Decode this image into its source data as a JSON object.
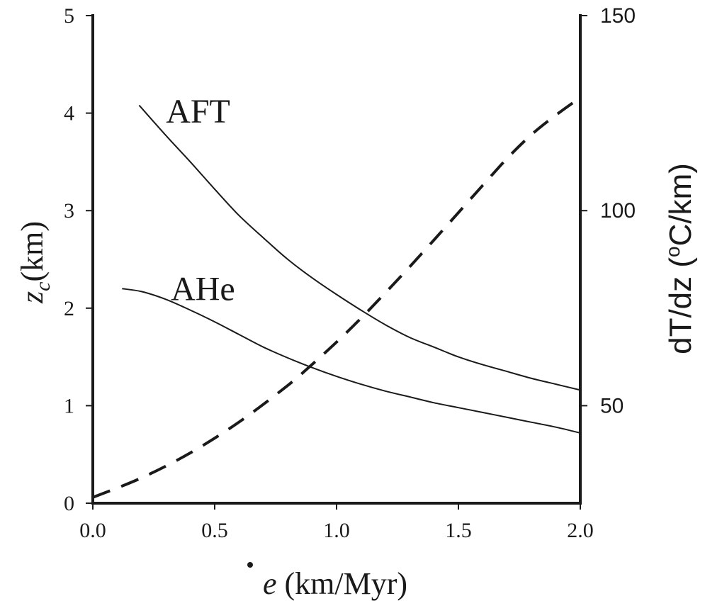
{
  "chart_data": {
    "type": "line",
    "x_axis": {
      "label_symbol": "e",
      "label_unit": " (km/Myr)",
      "range": [
        0.0,
        2.0
      ],
      "ticks": [
        "0.0",
        "0.5",
        "1.0",
        "1.5",
        "2.0"
      ],
      "tick_values": [
        0.0,
        0.5,
        1.0,
        1.5,
        2.0
      ]
    },
    "y_axis_left": {
      "label_symbol": "z",
      "label_subscript": "c",
      "label_unit": "(km)",
      "range": [
        0,
        5
      ],
      "ticks": [
        "0",
        "1",
        "2",
        "3",
        "4",
        "5"
      ],
      "tick_values": [
        0,
        1,
        2,
        3,
        4,
        5
      ]
    },
    "y_axis_right": {
      "label_prefix": "dT/dz (",
      "label_sup": "o",
      "label_suffix": "C/km)",
      "range": [
        25,
        150
      ],
      "ticks": [
        "50",
        "100",
        "150"
      ],
      "tick_values": [
        50,
        100,
        150
      ]
    },
    "grid": false,
    "series": [
      {
        "name": "AFT",
        "axis": "left",
        "style": "solid",
        "color": "#1a1a1a",
        "x": [
          0.19,
          0.3,
          0.4,
          0.5,
          0.6,
          0.7,
          0.8,
          0.9,
          1.0,
          1.1,
          1.2,
          1.3,
          1.4,
          1.5,
          1.6,
          1.7,
          1.8,
          1.9,
          2.0
        ],
        "y": [
          4.08,
          3.77,
          3.5,
          3.22,
          2.95,
          2.72,
          2.5,
          2.31,
          2.14,
          1.98,
          1.83,
          1.7,
          1.6,
          1.5,
          1.42,
          1.35,
          1.28,
          1.22,
          1.16
        ]
      },
      {
        "name": "AHe",
        "axis": "left",
        "style": "solid",
        "color": "#1a1a1a",
        "x": [
          0.12,
          0.2,
          0.3,
          0.4,
          0.5,
          0.6,
          0.7,
          0.8,
          0.9,
          1.0,
          1.1,
          1.2,
          1.3,
          1.4,
          1.5,
          1.6,
          1.7,
          1.8,
          1.9,
          2.0
        ],
        "y": [
          2.2,
          2.17,
          2.09,
          1.98,
          1.86,
          1.73,
          1.6,
          1.49,
          1.39,
          1.3,
          1.22,
          1.15,
          1.09,
          1.03,
          0.98,
          0.93,
          0.88,
          0.83,
          0.78,
          0.72
        ]
      },
      {
        "axis": "right",
        "style": "dashed",
        "color": "#1a1a1a",
        "x": [
          0.0,
          0.2,
          0.4,
          0.6,
          0.8,
          0.9,
          1.0,
          1.1,
          1.2,
          1.3,
          1.4,
          1.5,
          1.6,
          1.7,
          1.8,
          1.9,
          2.0
        ],
        "y": [
          26.5,
          31.5,
          37.9,
          45.8,
          55.2,
          60.6,
          66.3,
          72.4,
          78.9,
          85.6,
          92.5,
          99.5,
          106.5,
          113.4,
          119.5,
          124.5,
          129.0
        ]
      }
    ],
    "annotations": [
      {
        "text": "AFT",
        "x": 0.3,
        "y": 4.02
      },
      {
        "text": "AHe",
        "x": 0.32,
        "y": 2.2
      }
    ]
  }
}
